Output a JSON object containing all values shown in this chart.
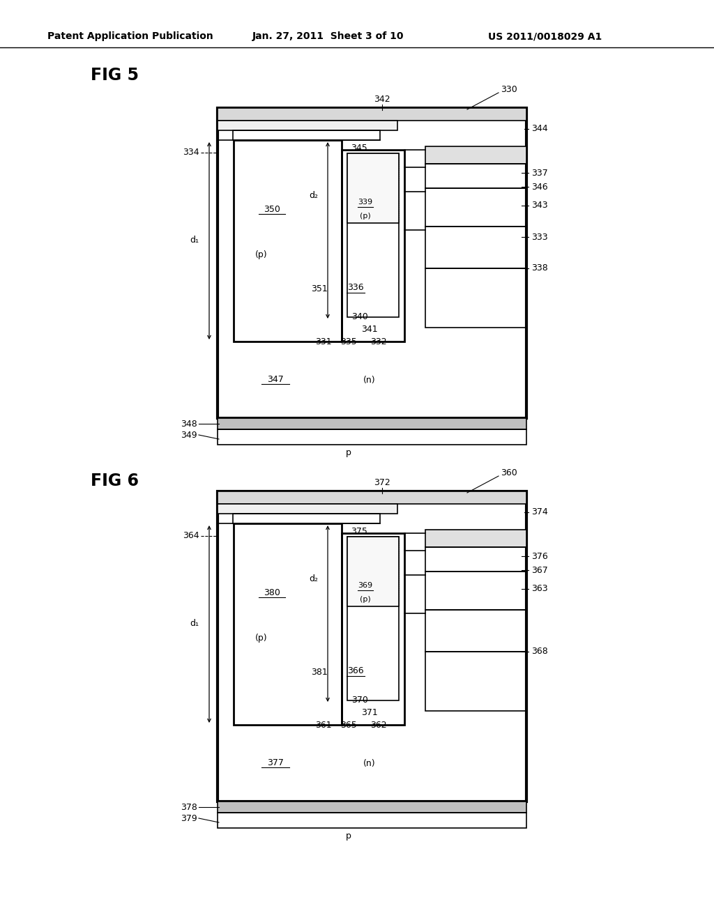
{
  "bg_color": "#ffffff",
  "lc": "#000000",
  "header_left": "Patent Application Publication",
  "header_mid": "Jan. 27, 2011  Sheet 3 of 10",
  "header_right": "US 2011/0018029 A1",
  "fig5_title": "FIG 5",
  "fig6_title": "FIG 6"
}
